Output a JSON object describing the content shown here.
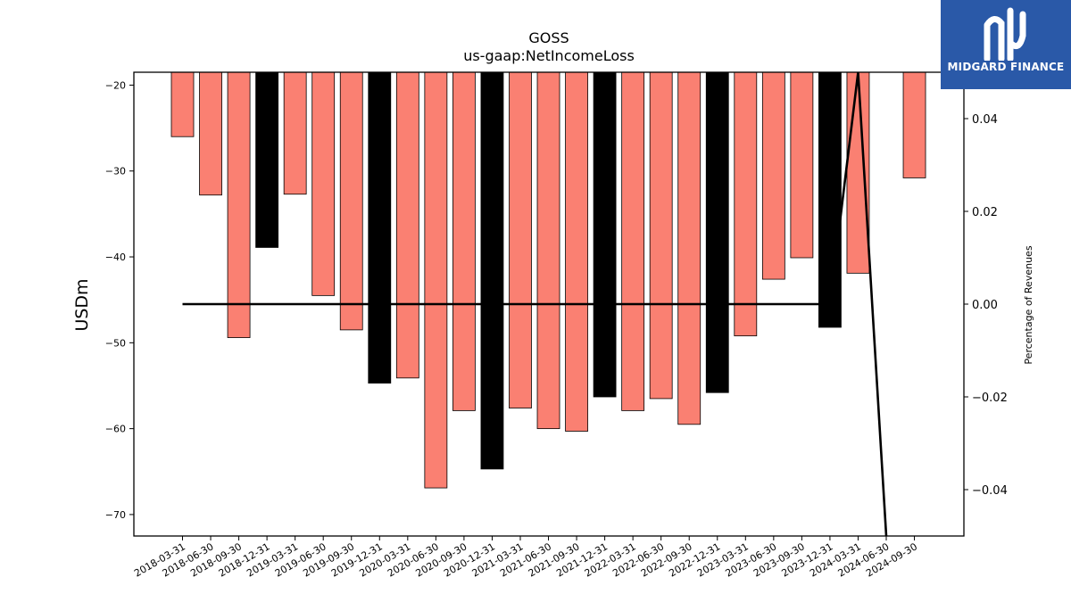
{
  "chart_data": {
    "type": "bar",
    "title": "GOSS",
    "subtitle": "us-gaap:NetIncomeLoss",
    "ylabel": "USDm",
    "y2label": "Percentage of Revenues",
    "ylim": [
      -72.5,
      -18.5
    ],
    "y2lim": [
      -0.05,
      0.05
    ],
    "yticks": [
      -20,
      -30,
      -40,
      -50,
      -60,
      -70
    ],
    "y2ticks": [
      0.04,
      0.02,
      0.0,
      -0.02,
      -0.04
    ],
    "y2tick_labels": [
      "0.04",
      "0.02",
      "0.00",
      "−0.02",
      "−0.04"
    ],
    "ytick_labels": [
      "−20",
      "−30",
      "−40",
      "−50",
      "−60",
      "−70"
    ],
    "categories": [
      "2018-03-31",
      "2018-06-30",
      "2018-09-30",
      "2018-12-31",
      "2019-03-31",
      "2019-06-30",
      "2019-09-30",
      "2019-12-31",
      "2020-03-31",
      "2020-06-30",
      "2020-09-30",
      "2020-12-31",
      "2021-03-31",
      "2021-06-30",
      "2021-09-30",
      "2021-12-31",
      "2022-03-31",
      "2022-06-30",
      "2022-09-30",
      "2022-12-31",
      "2023-03-31",
      "2023-06-30",
      "2023-09-30",
      "2023-12-31",
      "2024-03-31",
      "2024-06-30",
      "2024-09-30"
    ],
    "values": [
      -26.0,
      -32.8,
      -49.4,
      -38.9,
      -32.7,
      -44.5,
      -48.5,
      -54.7,
      -54.1,
      -66.9,
      -57.9,
      -64.7,
      -57.6,
      -60.0,
      -60.3,
      -56.3,
      -57.9,
      -56.5,
      -59.5,
      -55.8,
      -49.2,
      -42.6,
      -40.1,
      -48.2,
      -41.9,
      null,
      -30.8
    ],
    "bar_colors": [
      "#fa8072",
      "#fa8072",
      "#fa8072",
      "#000000",
      "#fa8072",
      "#fa8072",
      "#fa8072",
      "#000000",
      "#fa8072",
      "#fa8072",
      "#fa8072",
      "#000000",
      "#fa8072",
      "#fa8072",
      "#fa8072",
      "#000000",
      "#fa8072",
      "#fa8072",
      "#fa8072",
      "#000000",
      "#fa8072",
      "#fa8072",
      "#fa8072",
      "#000000",
      "#fa8072",
      null,
      "#fa8072"
    ],
    "line_series": {
      "axis": "secondary",
      "values": [
        0,
        0,
        0,
        0,
        0,
        0,
        0,
        0,
        0,
        0,
        0,
        0,
        0,
        0,
        0,
        0,
        0,
        0,
        0,
        0,
        0,
        0,
        0,
        0,
        0.05,
        -0.05,
        null
      ],
      "color": "#000000"
    },
    "grid": false
  },
  "logo": {
    "text": "MIDGARD FINANCE",
    "bg_color": "#2a59a8"
  }
}
